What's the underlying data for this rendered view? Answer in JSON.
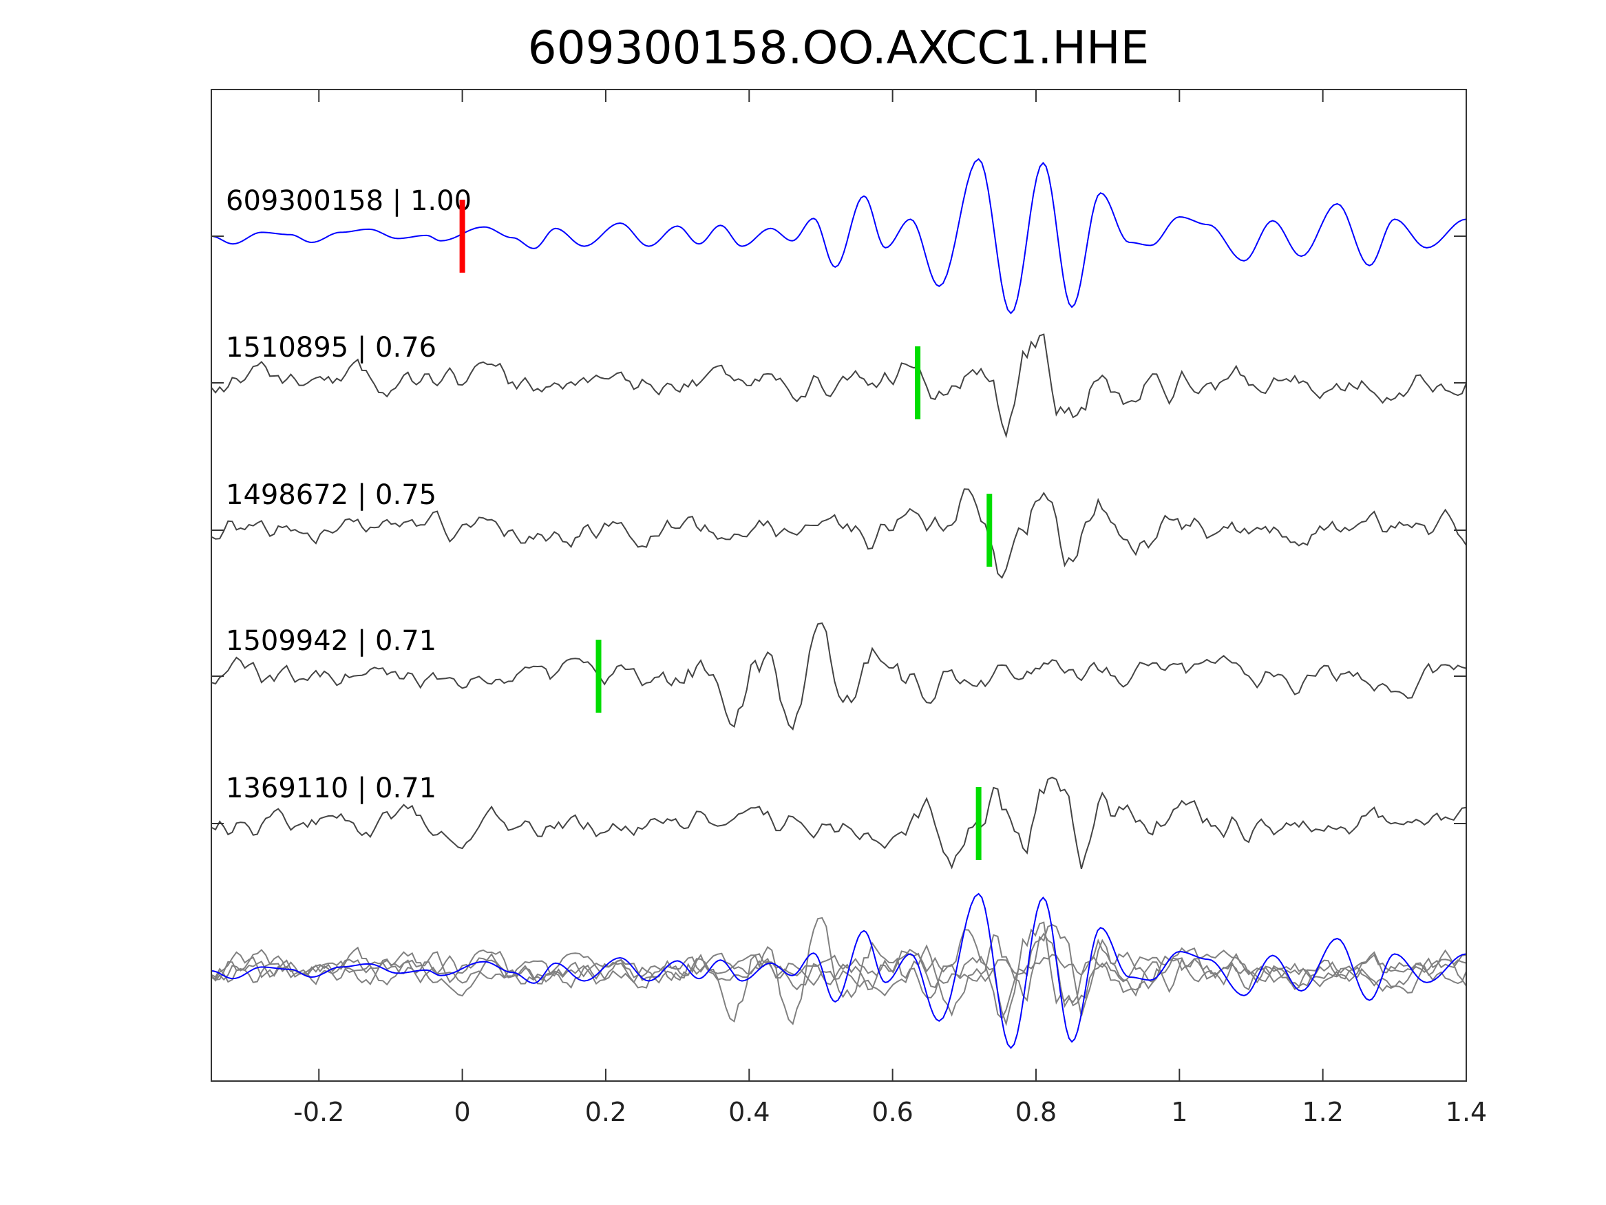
{
  "chart_data": {
    "type": "line",
    "title": "609300158.OO.AXCC1.HHE",
    "xlabel": "",
    "ylabel": "",
    "xlim": [
      -0.35,
      1.4
    ],
    "xticks": [
      -0.2,
      0,
      0.2,
      0.4,
      0.6,
      0.8,
      1,
      1.2,
      1.4
    ],
    "xtick_labels": [
      "-0.2",
      "0",
      "0.2",
      "0.4",
      "0.6",
      "0.8",
      "1",
      "1.2",
      "1.4"
    ],
    "grid": false,
    "colors": {
      "template": "#0000ff",
      "trace": "#444444",
      "stack": "#808080",
      "template_pick": "#ff0000",
      "match_pick": "#00dd00"
    },
    "traces": [
      {
        "label": "609300158 | 1.00",
        "id": "609300158",
        "cc": 1.0,
        "pick": 0.0,
        "pick_color": "red",
        "kind": "template",
        "extrema": [
          [
            -0.35,
            0
          ],
          [
            -0.32,
            -0.1
          ],
          [
            -0.28,
            0.05
          ],
          [
            -0.24,
            0.02
          ],
          [
            -0.21,
            -0.08
          ],
          [
            -0.17,
            0.05
          ],
          [
            -0.13,
            0.09
          ],
          [
            -0.09,
            -0.03
          ],
          [
            -0.05,
            0.01
          ],
          [
            -0.03,
            -0.06
          ],
          [
            0.03,
            0.12
          ],
          [
            0.07,
            -0.02
          ],
          [
            0.1,
            -0.16
          ],
          [
            0.13,
            0.1
          ],
          [
            0.17,
            -0.13
          ],
          [
            0.22,
            0.17
          ],
          [
            0.26,
            -0.13
          ],
          [
            0.3,
            0.13
          ],
          [
            0.33,
            -0.1
          ],
          [
            0.36,
            0.14
          ],
          [
            0.39,
            -0.13
          ],
          [
            0.43,
            0.1
          ],
          [
            0.46,
            -0.06
          ],
          [
            0.49,
            0.23
          ],
          [
            0.52,
            -0.4
          ],
          [
            0.56,
            0.52
          ],
          [
            0.59,
            -0.15
          ],
          [
            0.625,
            0.22
          ],
          [
            0.665,
            -0.65
          ],
          [
            0.72,
            1.0
          ],
          [
            0.765,
            -1.0
          ],
          [
            0.81,
            0.95
          ],
          [
            0.85,
            -0.92
          ],
          [
            0.89,
            0.56
          ],
          [
            0.93,
            -0.08
          ],
          [
            0.96,
            -0.12
          ],
          [
            1.0,
            0.25
          ],
          [
            1.04,
            0.15
          ],
          [
            1.09,
            -0.32
          ],
          [
            1.13,
            0.2
          ],
          [
            1.17,
            -0.26
          ],
          [
            1.22,
            0.42
          ],
          [
            1.265,
            -0.38
          ],
          [
            1.3,
            0.22
          ],
          [
            1.345,
            -0.15
          ],
          [
            1.4,
            0.22
          ]
        ]
      },
      {
        "label": "1510895 | 0.76",
        "id": "1510895",
        "cc": 0.76,
        "pick": 0.635,
        "pick_color": "green",
        "kind": "noisy",
        "seed": 11,
        "burst": 0.78
      },
      {
        "label": "1498672 | 0.75",
        "id": "1498672",
        "cc": 0.75,
        "pick": 0.735,
        "pick_color": "green",
        "kind": "noisy",
        "seed": 23,
        "burst": 0.78
      },
      {
        "label": "1509942 | 0.71",
        "id": "1509942",
        "cc": 0.71,
        "pick": 0.19,
        "pick_color": "green",
        "kind": "noisy",
        "seed": 37,
        "burst": 0.48
      },
      {
        "label": "1369110 | 0.71",
        "id": "1369110",
        "cc": 0.71,
        "pick": 0.72,
        "pick_color": "green",
        "kind": "noisy",
        "seed": 53,
        "burst": 0.8
      }
    ],
    "stack": {
      "kind": "overlay",
      "includes": [
        "1510895",
        "1498672",
        "1509942",
        "1369110",
        "609300158"
      ]
    }
  }
}
